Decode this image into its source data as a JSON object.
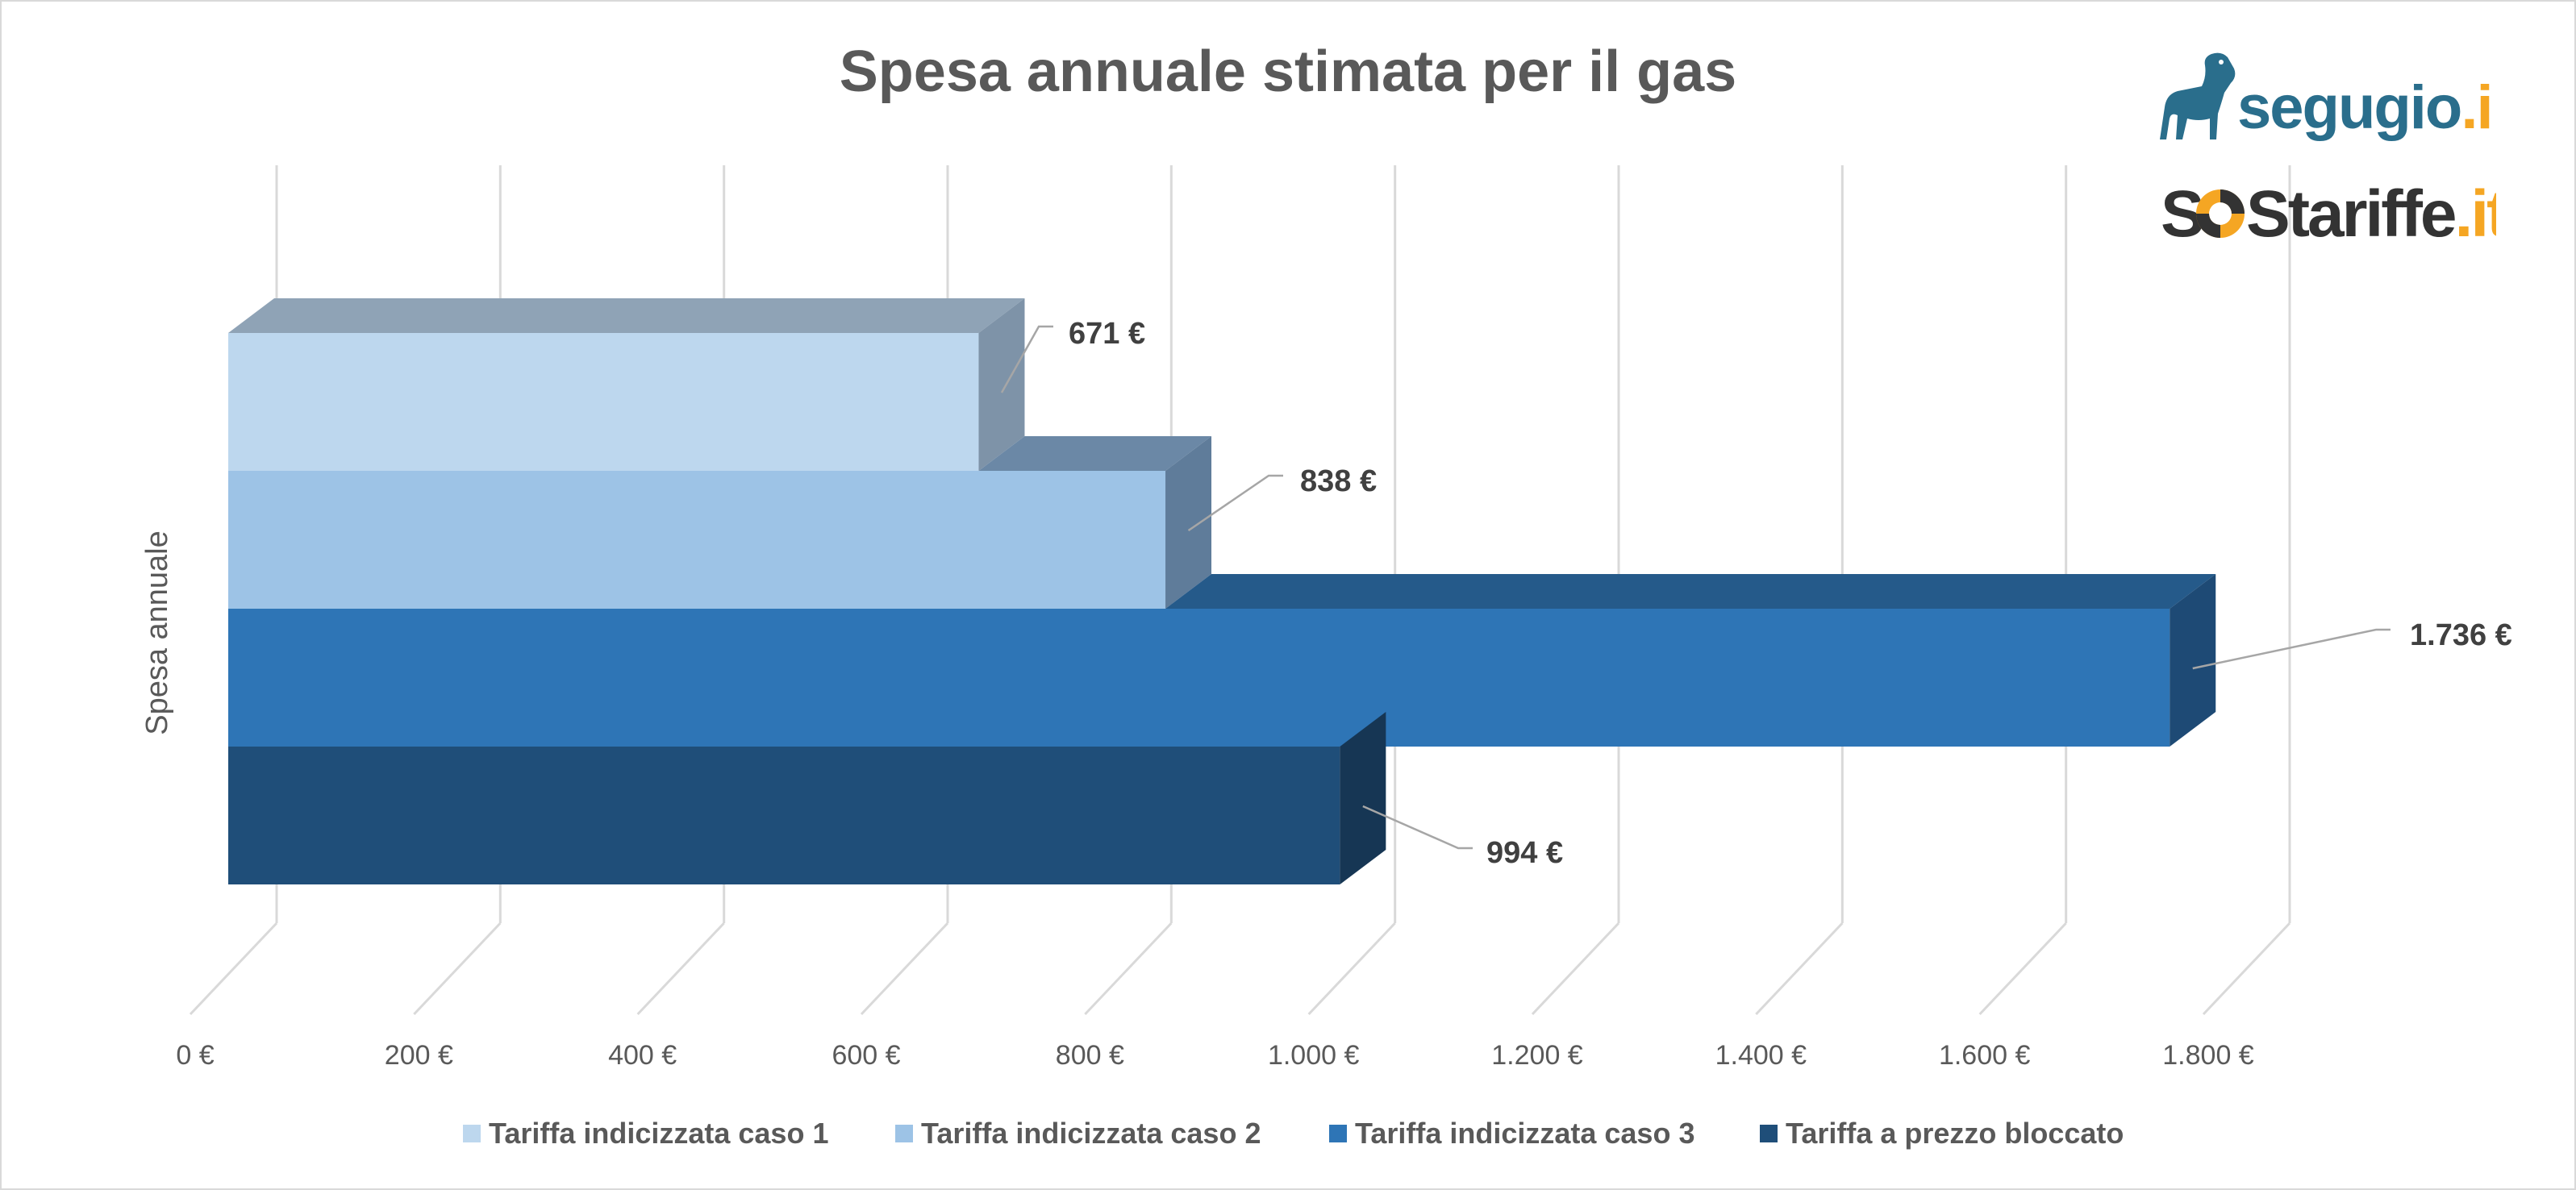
{
  "chart_data": {
    "type": "bar",
    "orientation": "horizontal",
    "style": "3d-clustered",
    "title": "Spesa annuale stimata per il gas",
    "ylabel": "Spesa annuale",
    "xlabel": "",
    "xlim": [
      0,
      1800
    ],
    "x_ticks": [
      0,
      200,
      400,
      600,
      800,
      1000,
      1200,
      1400,
      1600,
      1800
    ],
    "x_tick_labels": [
      "0 €",
      "200 €",
      "400 €",
      "600 €",
      "800 €",
      "1.000 €",
      "1.200 €",
      "1.400 €",
      "1.600 €",
      "1.800 €"
    ],
    "grid": true,
    "legend_position": "bottom",
    "categories": [
      "Spesa annuale"
    ],
    "series": [
      {
        "name": "Tariffa indicizzata caso 1",
        "values": [
          671
        ],
        "label": "671 €",
        "color": "#BDD7EE"
      },
      {
        "name": "Tariffa indicizzata caso 2",
        "values": [
          838
        ],
        "label": "838 €",
        "color": "#9DC3E6"
      },
      {
        "name": "Tariffa indicizzata caso 3",
        "values": [
          1736
        ],
        "label": "1.736 €",
        "color": "#2E75B6"
      },
      {
        "name": "Tariffa a prezzo bloccato",
        "values": [
          994
        ],
        "label": "994 €",
        "color": "#1F4E79"
      }
    ]
  },
  "logos": {
    "segugio": {
      "part1": "segugio",
      "part2": ".it"
    },
    "sostariffe": {
      "part1": "S",
      "part2": "S",
      "part3": "tariffe",
      "part4": ".it"
    }
  },
  "colors": {
    "logo_blue": "#2A6E8C",
    "logo_orange": "#F5A623",
    "logo_dark": "#333333"
  }
}
